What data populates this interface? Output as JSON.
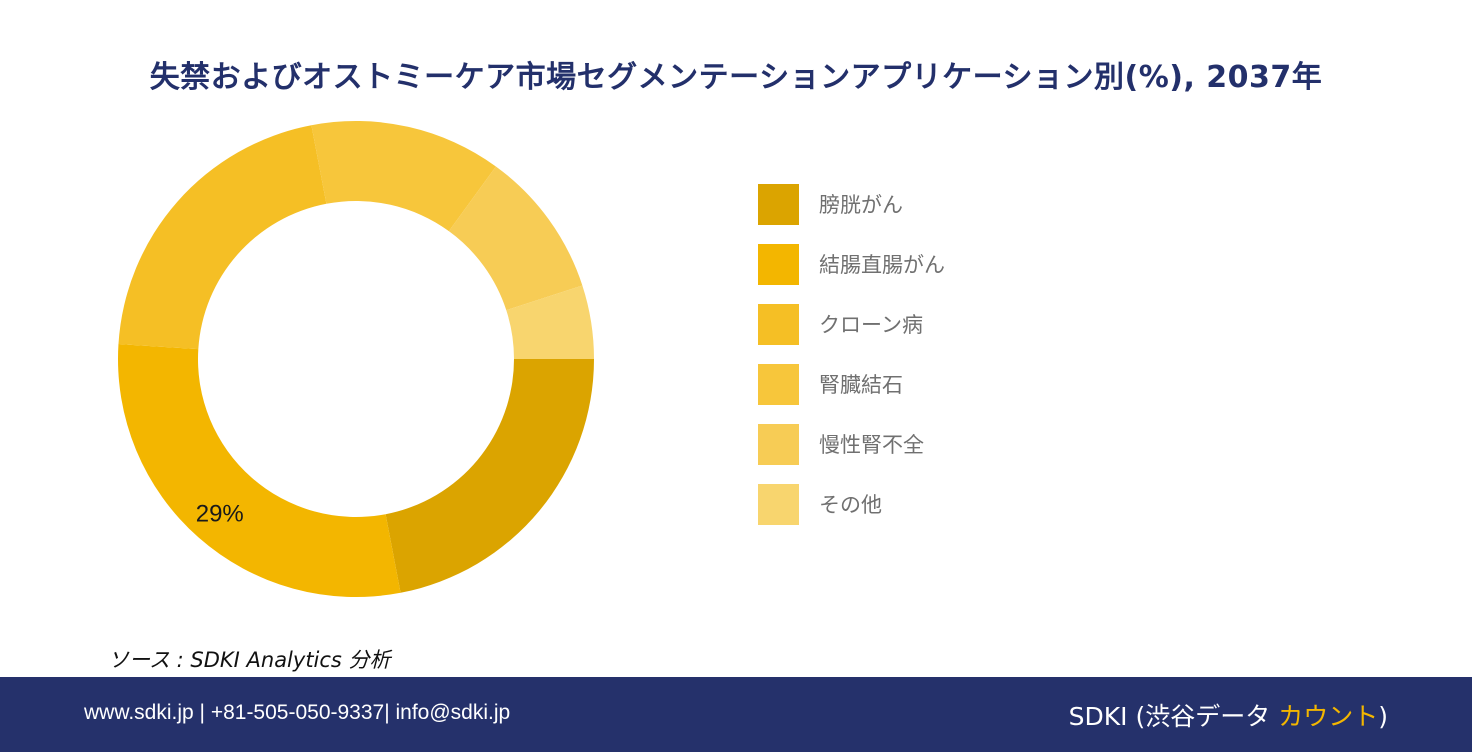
{
  "title": "失禁およびオストミーケア市場セグメンテーションアプリケーション別(%), 2037年",
  "chart_data": {
    "type": "pie",
    "style": "donut",
    "title": "失禁およびオストミーケア市場セグメンテーションアプリケーション別(%), 2037年",
    "categories": [
      "膀胱がん",
      "結腸直腸がん",
      "クローン病",
      "腎臓結石",
      "慢性腎不全",
      "その他"
    ],
    "values": [
      22,
      29,
      21,
      13,
      10,
      5
    ],
    "colors": [
      "#dba400",
      "#f3b600",
      "#f5bf25",
      "#f7c63b",
      "#f7cc55",
      "#f8d56e"
    ],
    "data_labels": [
      {
        "category": "結腸直腸がん",
        "text": "29%"
      }
    ],
    "legend_position": "right"
  },
  "legend": {
    "items": [
      {
        "label": "膀胱がん",
        "color": "#dba400"
      },
      {
        "label": "結腸直腸がん",
        "color": "#f3b600"
      },
      {
        "label": "クローン病",
        "color": "#f5bf25"
      },
      {
        "label": "腎臓結石",
        "color": "#f7c63b"
      },
      {
        "label": "慢性腎不全",
        "color": "#f7cc55"
      },
      {
        "label": "その他",
        "color": "#f8d56e"
      }
    ]
  },
  "source": "ソース : SDKI Analytics 分析",
  "footer": {
    "contact": "www.sdki.jp | +81-505-050-9337| info@sdki.jp",
    "brand_prefix": "SDKI (渋谷データ ",
    "brand_accent": "カウント",
    "brand_suffix": ")",
    "accent_color": "#f3b600",
    "background_color": "#25316b"
  }
}
